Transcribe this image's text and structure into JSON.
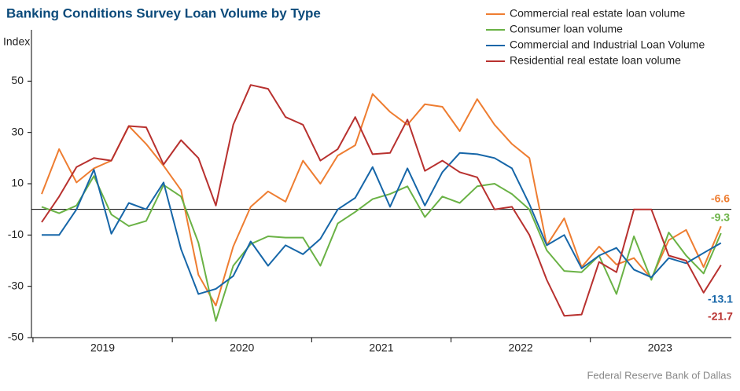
{
  "chart_data": {
    "type": "line",
    "title": "Banking Conditions Survey Loan Volume by Type",
    "y_label": "Index",
    "source": "Federal Reserve Bank of Dallas",
    "categories": [
      null,
      null,
      null,
      null,
      "2019",
      null,
      null,
      null,
      null,
      null,
      null,
      null,
      "2020",
      null,
      null,
      null,
      null,
      null,
      null,
      null,
      "2021",
      null,
      null,
      null,
      null,
      null,
      null,
      null,
      "2022",
      null,
      null,
      null,
      null,
      null,
      null,
      null,
      "2023",
      null,
      null,
      null
    ],
    "ylim": [
      -50,
      70
    ],
    "yticks": [
      -50,
      -30,
      -10,
      10,
      30,
      50
    ],
    "series": [
      {
        "name": "Commercial real estate loan volume",
        "color": "#ee7d31",
        "values": [
          6,
          23.5,
          10.5,
          16,
          19,
          32.5,
          25.5,
          17,
          7.5,
          -25.5,
          -37.5,
          -14.5,
          1,
          7,
          3,
          19,
          10,
          21,
          25,
          45,
          38,
          33,
          41,
          40,
          30.5,
          43,
          33,
          25.5,
          20,
          -14,
          -3.5,
          -22.5,
          -14.5,
          -21.5,
          -19,
          -27,
          -12,
          -8,
          -22.5,
          -6.6
        ]
      },
      {
        "name": "Consumer loan volume",
        "color": "#6ab245",
        "values": [
          1,
          -1.5,
          1.5,
          13,
          -2,
          -6.5,
          -4.5,
          9.5,
          5,
          -13,
          -43.5,
          -22,
          -13.5,
          -10.5,
          -11,
          -11,
          -22,
          -5.5,
          -1,
          4,
          6,
          9,
          -3,
          5,
          2.5,
          9,
          10,
          6,
          0,
          -16,
          -24,
          -24.5,
          -18,
          -33,
          -10.5,
          -27.5,
          -9,
          -18,
          -25,
          -9.3
        ]
      },
      {
        "name": "Commercial and Industrial Loan Volume",
        "color": "#1666a8",
        "values": [
          -10,
          -10,
          0,
          15.5,
          -9.5,
          2.5,
          0,
          10.5,
          -15.5,
          -33,
          -31,
          -26,
          -12.5,
          -22,
          -14,
          -17.5,
          -11.5,
          0,
          4.5,
          16.5,
          1,
          16,
          1.5,
          14.5,
          22,
          21.5,
          20,
          16,
          2,
          -14,
          -10,
          -23,
          -18,
          -15,
          -23.5,
          -26.5,
          -19,
          -21,
          -17,
          -13.1
        ]
      },
      {
        "name": "Residential real estate loan volume",
        "color": "#b8312f",
        "values": [
          -5,
          5,
          16.5,
          20,
          19,
          32.5,
          32,
          17.5,
          27,
          20,
          1.5,
          33,
          48.5,
          47,
          36,
          33,
          19,
          23.5,
          36,
          21.5,
          22,
          35,
          15,
          19,
          14.5,
          12.5,
          0,
          1,
          -10,
          -27.5,
          -41.5,
          -41,
          -20.5,
          -24.5,
          0,
          0,
          -18,
          -20,
          -32.5,
          -21.7
        ]
      }
    ]
  }
}
